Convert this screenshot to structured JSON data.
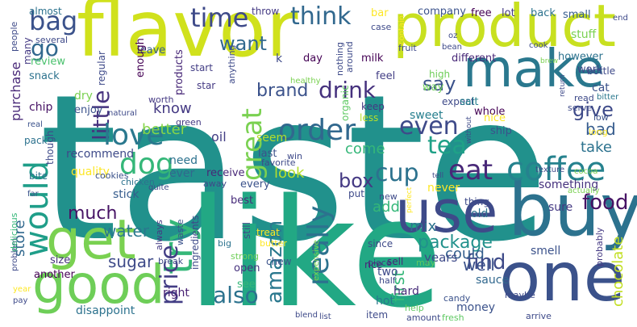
{
  "words": [
    {
      "text": "taste",
      "color": "#21918c"
    },
    {
      "text": "like",
      "color": "#22a884"
    },
    {
      "text": "flavor",
      "color": "#d0e11c"
    },
    {
      "text": "product",
      "color": "#c8e020"
    },
    {
      "text": "make",
      "color": "#2a788e"
    },
    {
      "text": "buy",
      "color": "#2c728e"
    },
    {
      "text": "one",
      "color": "#3b528b"
    },
    {
      "text": "good",
      "color": "#6ece58"
    },
    {
      "text": "get",
      "color": "#7ad151"
    },
    {
      "text": "use",
      "color": "#3e4a89"
    },
    {
      "text": "try",
      "color": "#35b779"
    },
    {
      "text": "coffee",
      "color": "#26828e"
    },
    {
      "text": "order",
      "color": "#31688e"
    },
    {
      "text": "love",
      "color": "#2a788e"
    },
    {
      "text": "eat",
      "color": "#482878"
    },
    {
      "text": "tea",
      "color": "#1fa187"
    },
    {
      "text": "would",
      "color": "#1f9e89"
    },
    {
      "text": "great",
      "color": "#7ad151"
    },
    {
      "text": "dog",
      "color": "#35b779"
    },
    {
      "text": "think",
      "color": "#31688e"
    },
    {
      "text": "time",
      "color": "#3e4a89"
    },
    {
      "text": "bag",
      "color": "#3b528b"
    },
    {
      "text": "go",
      "color": "#31688e"
    },
    {
      "text": "really",
      "color": "#2c728e"
    },
    {
      "text": "even",
      "color": "#3e4a89"
    },
    {
      "text": "cup",
      "color": "#2c728e"
    },
    {
      "text": "box",
      "color": "#443983"
    },
    {
      "text": "drink",
      "color": "#46327e"
    },
    {
      "text": "brand",
      "color": "#3b528b"
    },
    {
      "text": "little",
      "color": "#46327e"
    },
    {
      "text": "much",
      "color": "#471365"
    },
    {
      "text": "food",
      "color": "#471365"
    },
    {
      "text": "find",
      "color": "#3e4a89"
    },
    {
      "text": "price",
      "color": "#433e85"
    },
    {
      "text": "also",
      "color": "#2c728e"
    },
    {
      "text": "amazon",
      "color": "#2a788e"
    },
    {
      "text": "want",
      "color": "#31688e"
    },
    {
      "text": "say",
      "color": "#3b528b"
    },
    {
      "text": "give",
      "color": "#3e4a89"
    },
    {
      "text": "know",
      "color": "#443983"
    },
    {
      "text": "bad",
      "color": "#365c8d"
    },
    {
      "text": "take",
      "color": "#2c728e"
    },
    {
      "text": "look",
      "color": "#b5de2b"
    },
    {
      "text": "come",
      "color": "#35b779"
    },
    {
      "text": "better",
      "color": "#86d549"
    },
    {
      "text": "water",
      "color": "#2a788e"
    },
    {
      "text": "sugar",
      "color": "#3e4a89"
    },
    {
      "text": "package",
      "color": "#21918c"
    },
    {
      "text": "well",
      "color": "#3b528b"
    },
    {
      "text": "chocolate",
      "color": "#c2df23"
    },
    {
      "text": "store",
      "color": "#31688e"
    },
    {
      "text": "first",
      "color": "#35b779"
    },
    {
      "text": "could",
      "color": "#355f8d"
    },
    {
      "text": "mix",
      "color": "#2c728e"
    },
    {
      "text": "add",
      "color": "#35b779"
    },
    {
      "text": "purchase",
      "color": "#482878"
    },
    {
      "text": "recommend",
      "color": "#3e4a89"
    },
    {
      "text": "quality",
      "color": "#fde725"
    },
    {
      "text": "stick",
      "color": "#365c8d"
    },
    {
      "text": "oil",
      "color": "#433e85"
    },
    {
      "text": "need",
      "color": "#2c728e"
    },
    {
      "text": "ever",
      "color": "#31688e"
    },
    {
      "text": "receive",
      "color": "#482878"
    },
    {
      "text": "seem",
      "color": "#b5de2b"
    },
    {
      "text": "last",
      "color": "#3b528b"
    },
    {
      "text": "every",
      "color": "#3b528b"
    },
    {
      "text": "best",
      "color": "#472c7a"
    },
    {
      "text": "sweet",
      "color": "#277f8e"
    },
    {
      "text": "never",
      "color": "#fde725"
    },
    {
      "text": "something",
      "color": "#46327e"
    },
    {
      "text": "sure",
      "color": "#443983"
    },
    {
      "text": "old",
      "color": "#2c728e"
    },
    {
      "text": "years",
      "color": "#3e4a89"
    },
    {
      "text": "smell",
      "color": "#3b528b"
    },
    {
      "text": "sauce",
      "color": "#31688e"
    },
    {
      "text": "two",
      "color": "#3e4a89"
    },
    {
      "text": "hard",
      "color": "#472c7a"
    },
    {
      "text": "hot",
      "color": "#2a788e"
    },
    {
      "text": "money",
      "color": "#3b528b"
    },
    {
      "text": "right",
      "color": "#482173"
    },
    {
      "text": "see",
      "color": "#35b779"
    },
    {
      "text": "open",
      "color": "#46327e"
    },
    {
      "text": "disappoint",
      "color": "#2c728e"
    },
    {
      "text": "another",
      "color": "#440154"
    },
    {
      "text": "size",
      "color": "#46327e"
    },
    {
      "text": "dry",
      "color": "#7ad151"
    },
    {
      "text": "chip",
      "color": "#471365"
    },
    {
      "text": "enjoy",
      "color": "#3b528b"
    },
    {
      "text": "review",
      "color": "#4ac16d"
    },
    {
      "text": "snack",
      "color": "#2c728e"
    },
    {
      "text": "leave",
      "color": "#365c8d"
    },
    {
      "text": "products",
      "color": "#482878"
    },
    {
      "text": "enough",
      "color": "#440154"
    },
    {
      "text": "regular",
      "color": "#3e4a89"
    },
    {
      "text": "almost",
      "color": "#2c728e"
    },
    {
      "text": "people",
      "color": "#3e4a89"
    },
    {
      "text": "many",
      "color": "#443983"
    },
    {
      "text": "several",
      "color": "#3e4a89"
    },
    {
      "text": "start",
      "color": "#433e85"
    },
    {
      "text": "throw",
      "color": "#443983"
    },
    {
      "text": "company",
      "color": "#3b528b"
    },
    {
      "text": "bar",
      "color": "#fde725"
    },
    {
      "text": "free",
      "color": "#440154"
    },
    {
      "text": "lot",
      "color": "#443983"
    },
    {
      "text": "back",
      "color": "#2c728e"
    },
    {
      "text": "small",
      "color": "#365c8d"
    },
    {
      "text": "stuff",
      "color": "#7ad151"
    },
    {
      "text": "however",
      "color": "#2c728e"
    },
    {
      "text": "work",
      "color": "#3e4a89"
    },
    {
      "text": "different",
      "color": "#482878"
    },
    {
      "text": "milk",
      "color": "#440154"
    },
    {
      "text": "day",
      "color": "#440154"
    },
    {
      "text": "feel",
      "color": "#433e85"
    },
    {
      "text": "high",
      "color": "#6ece58"
    },
    {
      "text": "way",
      "color": "#6ece58"
    },
    {
      "text": "expect",
      "color": "#3e4a89"
    },
    {
      "text": "organic",
      "color": "#5ec962"
    },
    {
      "text": "keep",
      "color": "#443983"
    },
    {
      "text": "less",
      "color": "#b5de2b"
    },
    {
      "text": "salt",
      "color": "#26828e"
    },
    {
      "text": "whole",
      "color": "#440154"
    },
    {
      "text": "nice",
      "color": "#fde725"
    },
    {
      "text": "ship",
      "color": "#3b528b"
    },
    {
      "text": "cat",
      "color": "#3b528b"
    },
    {
      "text": "read",
      "color": "#3e4a89"
    },
    {
      "text": "bitter",
      "color": "#2a788e"
    },
    {
      "text": "serve",
      "color": "#3e4a89"
    },
    {
      "text": "low",
      "color": "#3b528b"
    },
    {
      "text": "long",
      "color": "#fde725"
    },
    {
      "text": "bottle",
      "color": "#3e4a89"
    },
    {
      "text": "texture",
      "color": "#3e4a89"
    },
    {
      "text": "cocoa",
      "color": "#7ad151"
    },
    {
      "text": "actually",
      "color": "#7ad151"
    },
    {
      "text": "probably",
      "color": "#443983"
    },
    {
      "text": "maybe",
      "color": "#3e4a89"
    },
    {
      "text": "arrive",
      "color": "#3e4a89"
    },
    {
      "text": "candy",
      "color": "#3b528b"
    },
    {
      "text": "fresh",
      "color": "#5ec962"
    },
    {
      "text": "help",
      "color": "#5ec962"
    },
    {
      "text": "amount",
      "color": "#3e4a89"
    },
    {
      "text": "item",
      "color": "#3e4a89"
    },
    {
      "text": "half",
      "color": "#3e4a89"
    },
    {
      "text": "piece",
      "color": "#443983"
    },
    {
      "text": "rice",
      "color": "#482878"
    },
    {
      "text": "sell",
      "color": "#482878"
    },
    {
      "text": "may",
      "color": "#5ec962"
    },
    {
      "text": "expensive",
      "color": "#7ad151"
    },
    {
      "text": "chew",
      "color": "#3b528b"
    },
    {
      "text": "strong",
      "color": "#6ece58"
    },
    {
      "text": "butter",
      "color": "#fde725"
    },
    {
      "text": "big",
      "color": "#2c728e"
    },
    {
      "text": "waste",
      "color": "#3b528b"
    },
    {
      "text": "always",
      "color": "#443983"
    },
    {
      "text": "break",
      "color": "#3e4a89"
    },
    {
      "text": "problem",
      "color": "#3e4a89"
    },
    {
      "text": "blend",
      "color": "#3e4a89"
    },
    {
      "text": "list",
      "color": "#3e4a89"
    },
    {
      "text": "year",
      "color": "#fde725"
    },
    {
      "text": "pay",
      "color": "#3e4a89"
    },
    {
      "text": "far",
      "color": "#3b528b"
    },
    {
      "text": "delicious",
      "color": "#35b779"
    },
    {
      "text": "bite",
      "color": "#2c728e"
    },
    {
      "text": "pack",
      "color": "#2c728e"
    },
    {
      "text": "though",
      "color": "#3e4a89"
    },
    {
      "text": "cookies",
      "color": "#3b528b"
    },
    {
      "text": "chicken",
      "color": "#2c728e"
    },
    {
      "text": "natural",
      "color": "#3e4a89"
    },
    {
      "text": "green",
      "color": "#443983"
    },
    {
      "text": "worth",
      "color": "#443983"
    },
    {
      "text": "real",
      "color": "#3b528b"
    },
    {
      "text": "healthy",
      "color": "#7ad151"
    },
    {
      "text": "star",
      "color": "#443983"
    },
    {
      "text": "win",
      "color": "#3e4a89"
    },
    {
      "text": "quite",
      "color": "#3e4a89"
    },
    {
      "text": "away",
      "color": "#3e4a89"
    },
    {
      "text": "favorite",
      "color": "#3e4a89"
    },
    {
      "text": "put",
      "color": "#3e4a89"
    },
    {
      "text": "thing",
      "color": "#3e4a89"
    },
    {
      "text": "since",
      "color": "#3e4a89"
    },
    {
      "text": "new",
      "color": "#3e4a89"
    },
    {
      "text": "treat",
      "color": "#fde725"
    },
    {
      "text": "still",
      "color": "#3e4a89"
    },
    {
      "text": "ingredients",
      "color": "#3e4a89"
    },
    {
      "text": "nothing",
      "color": "#3e4a89"
    },
    {
      "text": "around",
      "color": "#3e4a89"
    },
    {
      "text": "anything",
      "color": "#3e4a89"
    },
    {
      "text": "k",
      "color": "#3e4a89"
    },
    {
      "text": "fruit",
      "color": "#3e4a89"
    },
    {
      "text": "bean",
      "color": "#3e4a89"
    },
    {
      "text": "oz",
      "color": "#3e4a89"
    },
    {
      "text": "cook",
      "color": "#3e4a89"
    },
    {
      "text": "case",
      "color": "#3e4a89"
    },
    {
      "text": "contain",
      "color": "#fde725"
    },
    {
      "text": "brew",
      "color": "#7ad151"
    },
    {
      "text": "end",
      "color": "#3e4a89"
    },
    {
      "text": "tell",
      "color": "#3e4a89"
    },
    {
      "text": "without",
      "color": "#3e4a89"
    },
    {
      "text": "perfect",
      "color": "#fde725"
    },
    {
      "text": "return",
      "color": "#3e4a89"
    }
  ]
}
